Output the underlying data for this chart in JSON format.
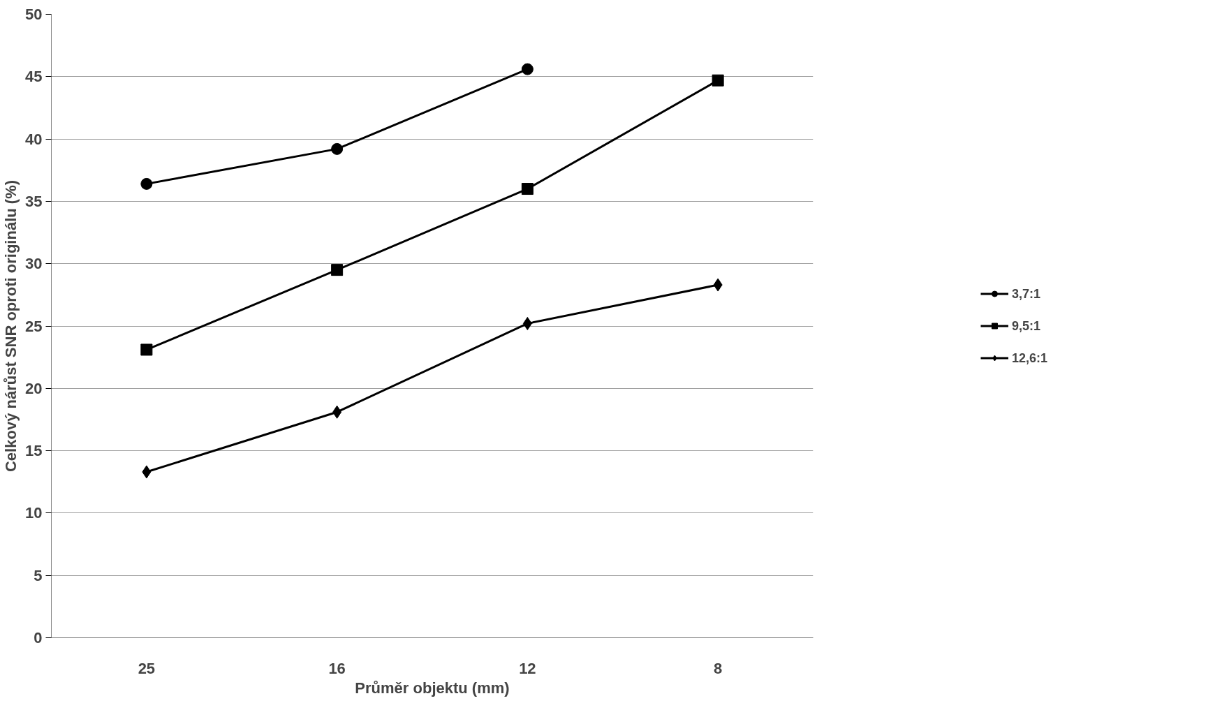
{
  "chart_data": {
    "type": "line",
    "xlabel": "Průměr objektu (mm)",
    "ylabel": "Celkový nárůst SNR oproti originálu (%)",
    "categories": [
      "25",
      "16",
      "12",
      "8"
    ],
    "series": [
      {
        "name": "3,7:1",
        "color": "#000000",
        "marker": "circle",
        "values": [
          36.4,
          39.2,
          45.6,
          null
        ]
      },
      {
        "name": "9,5:1",
        "color": "#000000",
        "marker": "square",
        "values": [
          23.1,
          29.5,
          36.0,
          44.7
        ]
      },
      {
        "name": "12,6:1",
        "color": "#000000",
        "marker": "diamond",
        "values": [
          13.3,
          18.1,
          25.2,
          28.3
        ]
      }
    ],
    "ylim": [
      0,
      50
    ],
    "yticks": [
      0,
      5,
      10,
      15,
      20,
      25,
      30,
      35,
      40,
      45,
      50
    ],
    "grid": "y",
    "legend": "right",
    "line_style": "solid"
  }
}
